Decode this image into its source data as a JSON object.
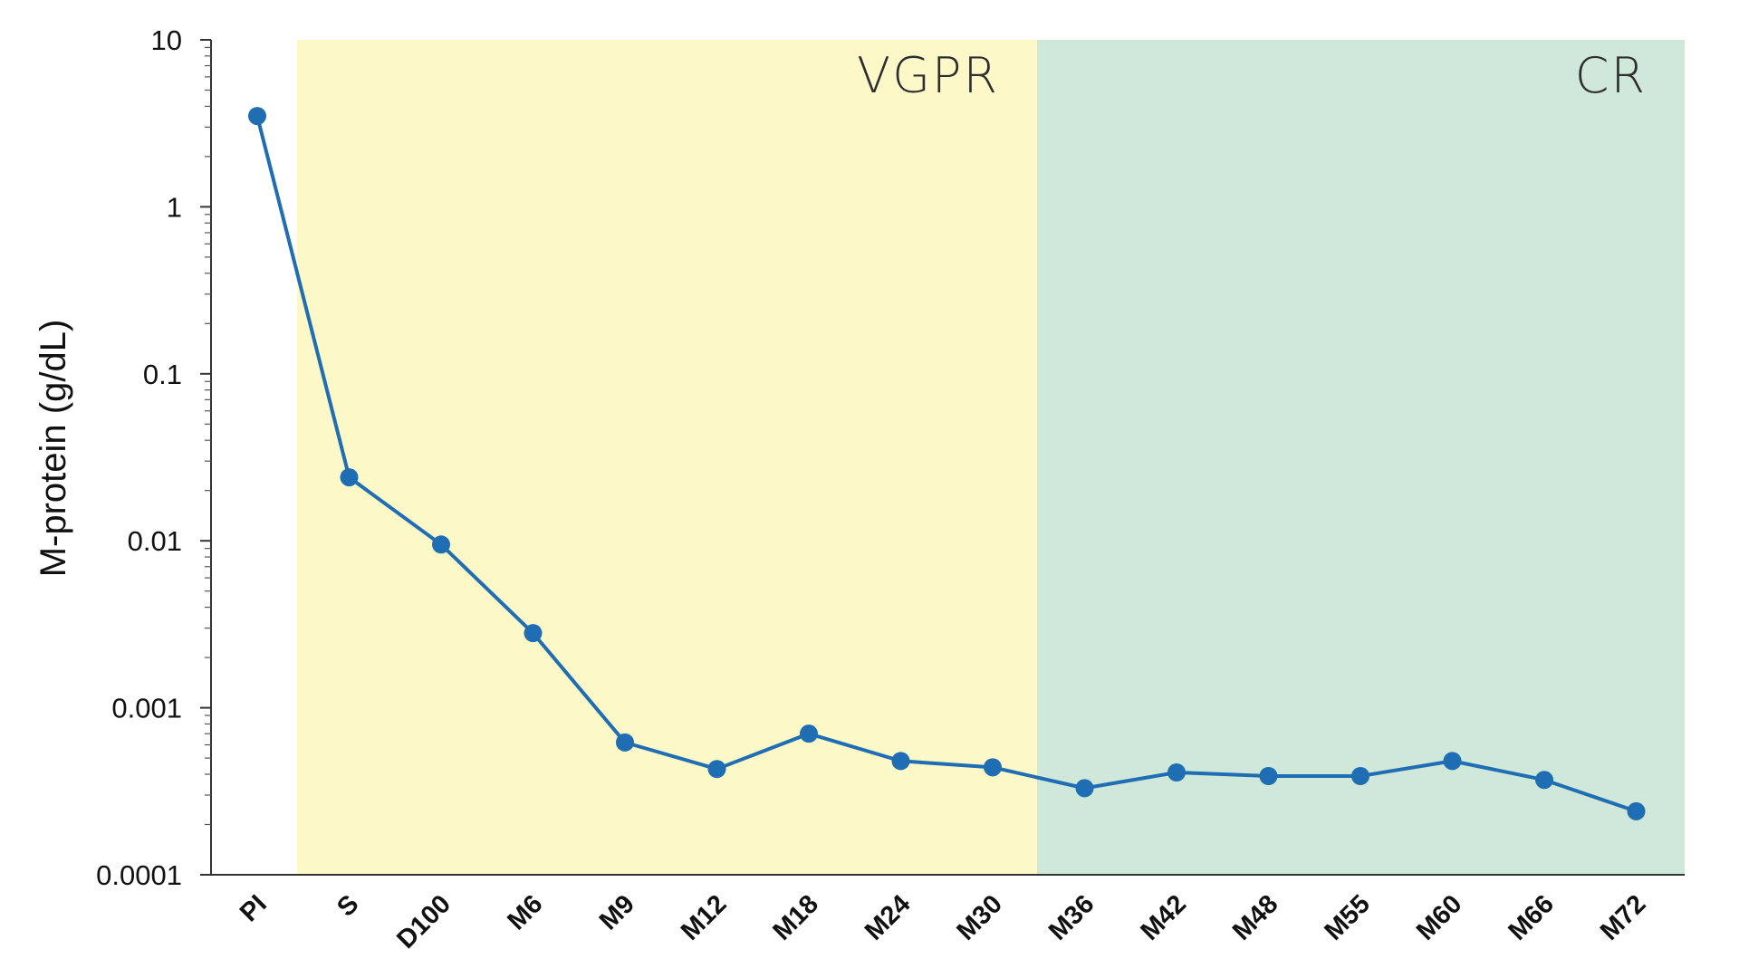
{
  "chart_data": {
    "type": "line",
    "title": "",
    "xlabel": "",
    "ylabel": "M-protein (g/dL)",
    "yscale": "log",
    "ylim": [
      0.0001,
      10
    ],
    "yticks": [
      {
        "value": 10,
        "label": "10"
      },
      {
        "value": 1,
        "label": "1"
      },
      {
        "value": 0.1,
        "label": "0.1"
      },
      {
        "value": 0.01,
        "label": "0.01"
      },
      {
        "value": 0.001,
        "label": "0.001"
      },
      {
        "value": 0.0001,
        "label": "0.0001"
      }
    ],
    "grid": false,
    "categories": [
      "PI",
      "S",
      "D100",
      "M6",
      "M9",
      "M12",
      "M18",
      "M24",
      "M30",
      "M36",
      "M42",
      "M48",
      "M55",
      "M60",
      "M66",
      "M72"
    ],
    "series": [
      {
        "color": "#1f6db3",
        "values": [
          3.5,
          0.024,
          0.0095,
          0.0028,
          0.00062,
          0.00043,
          0.0007,
          0.00048,
          0.00044,
          0.00033,
          0.00041,
          0.00039,
          0.00039,
          0.00048,
          0.00037,
          0.00024
        ]
      }
    ],
    "regions": [
      {
        "label": "VGPR",
        "from_category": "S",
        "to_category": "M36",
        "color": "#fdf8c8"
      },
      {
        "label": "CR",
        "from_category": "M36",
        "to_category": "M72",
        "color": "#cfe8da"
      }
    ]
  }
}
